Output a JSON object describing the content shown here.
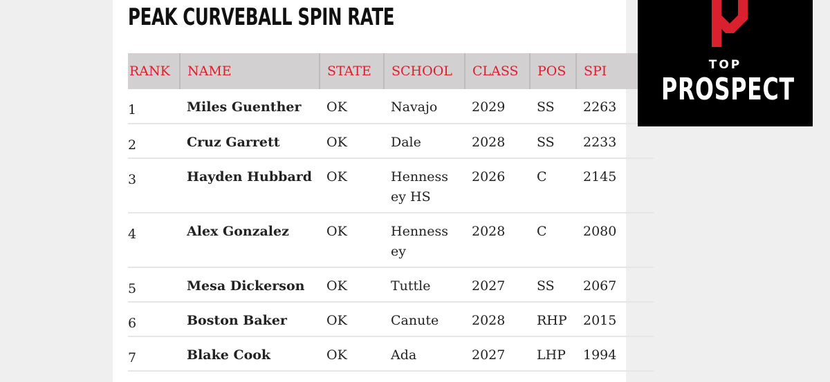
{
  "title": "PEAK CURVEBALL SPIN RATE",
  "table": {
    "headers": {
      "rank": "RANK",
      "name": "NAME",
      "state": "STATE",
      "school": "SCHOOL",
      "class": "CLASS",
      "pos": "POS",
      "spin": "SPI"
    },
    "rows": [
      {
        "rank": "1",
        "name": "Miles Guenther",
        "state": "OK",
        "school": "Navajo",
        "class": "2029",
        "pos": "SS",
        "spin": "2263"
      },
      {
        "rank": "2",
        "name": "Cruz Garrett",
        "state": "OK",
        "school": "Dale",
        "class": "2028",
        "pos": "SS",
        "spin": "2233"
      },
      {
        "rank": "3",
        "name": "Hayden Hubbard",
        "state": "OK",
        "school": "Hennessey HS",
        "class": "2026",
        "pos": "C",
        "spin": "2145"
      },
      {
        "rank": "4",
        "name": "Alex Gonzalez",
        "state": "OK",
        "school": "Hennessey",
        "class": "2028",
        "pos": "C",
        "spin": "2080"
      },
      {
        "rank": "5",
        "name": "Mesa Dickerson",
        "state": "OK",
        "school": "Tuttle",
        "class": "2027",
        "pos": "SS",
        "spin": "2067"
      },
      {
        "rank": "6",
        "name": "Boston Baker",
        "state": "OK",
        "school": "Canute",
        "class": "2028",
        "pos": "RHP",
        "spin": "2015"
      },
      {
        "rank": "7",
        "name": "Blake Cook",
        "state": "OK",
        "school": "Ada",
        "class": "2027",
        "pos": "LHP",
        "spin": "1994"
      }
    ]
  },
  "logo": {
    "top": "TOP",
    "prospect": "PROSPECT",
    "icon": "top-prospect-logo-mark",
    "accent_color": "#d9202f"
  },
  "colors": {
    "header_text": "#d9202f",
    "header_bg": "#d3d0d2",
    "page_bg": "#efefef"
  }
}
